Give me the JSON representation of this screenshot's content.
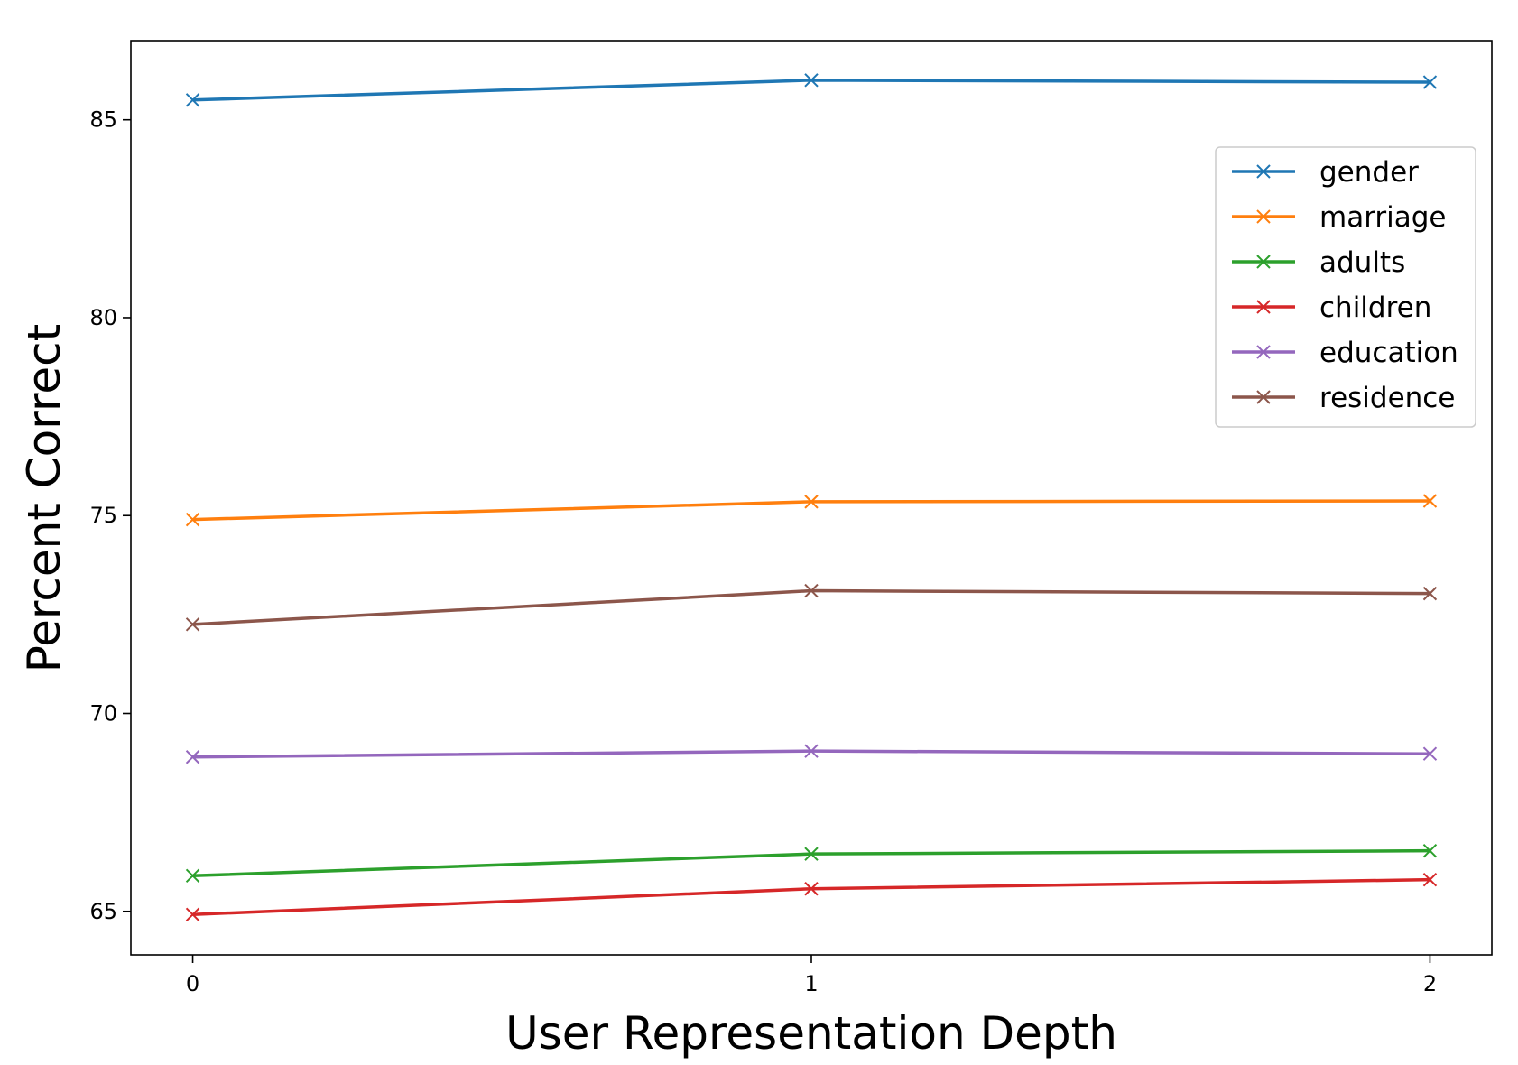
{
  "chart_data": {
    "type": "line",
    "title": "",
    "xlabel": "User Representation Depth",
    "ylabel": "Percent Correct",
    "x": [
      0,
      1,
      2
    ],
    "xticks": [
      "0",
      "1",
      "2"
    ],
    "yticks": [
      "65",
      "70",
      "75",
      "80",
      "85"
    ],
    "xlim": [
      -0.1,
      2.1
    ],
    "ylim": [
      63.9,
      87.0
    ],
    "grid": false,
    "legend_position": "upper-right",
    "marker": "x",
    "series": [
      {
        "name": "gender",
        "color": "#1f77b4",
        "values": [
          85.5,
          86.0,
          85.95
        ]
      },
      {
        "name": "marriage",
        "color": "#ff7f0e",
        "values": [
          74.9,
          75.35,
          75.37
        ]
      },
      {
        "name": "adults",
        "color": "#2ca02c",
        "values": [
          65.9,
          66.45,
          66.53
        ]
      },
      {
        "name": "children",
        "color": "#d62728",
        "values": [
          64.92,
          65.57,
          65.8
        ]
      },
      {
        "name": "education",
        "color": "#9467bd",
        "values": [
          68.9,
          69.05,
          68.98
        ]
      },
      {
        "name": "residence",
        "color": "#8c564b",
        "values": [
          72.25,
          73.1,
          73.03
        ]
      }
    ]
  }
}
